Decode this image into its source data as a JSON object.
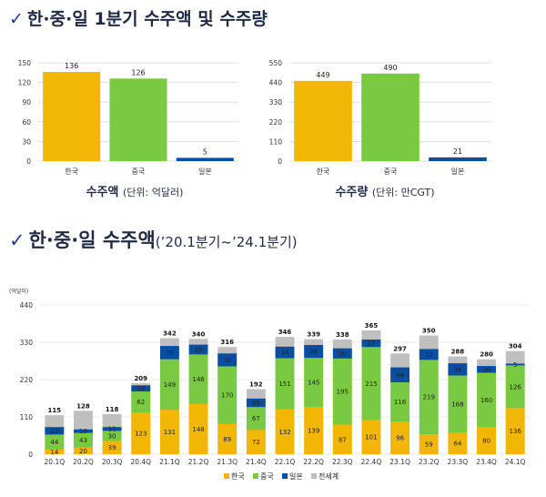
{
  "header1": {
    "check": "✓",
    "title": "한·중·일 1분기 수주액 및 수주량"
  },
  "header2": {
    "check": "✓",
    "title": "한·중·일 수주액",
    "subtitle": "(’20.1분기~’24.1분기)"
  },
  "colors": {
    "korea": "#f2b705",
    "china": "#7ac943",
    "japan": "#0a4ea2",
    "world": "#bfbfbf"
  },
  "chart_data": [
    {
      "type": "bar",
      "title": "수주액 (단위: 억달러)",
      "title_main": "수주액",
      "title_sub": "(단위: 억달러)",
      "categories": [
        "한국",
        "중국",
        "일본"
      ],
      "values": [
        136,
        126,
        5
      ],
      "ylim": [
        0,
        150
      ],
      "yticks": [
        0,
        30,
        60,
        90,
        120,
        150
      ],
      "grid": true
    },
    {
      "type": "bar",
      "title": "수주량 (단위: 만CGT)",
      "title_main": "수주량",
      "title_sub": "(단위: 만CGT)",
      "categories": [
        "한국",
        "중국",
        "일본"
      ],
      "values": [
        449,
        490,
        21
      ],
      "ylim": [
        0,
        550
      ],
      "yticks": [
        0,
        110,
        220,
        330,
        440,
        550
      ],
      "grid": true
    },
    {
      "type": "bar",
      "stacked": true,
      "unit_label": "(억달러)",
      "categories": [
        "20.1Q",
        "20.2Q",
        "20.3Q",
        "20.4Q",
        "21.1Q",
        "21.2Q",
        "21.3Q",
        "21.4Q",
        "22.1Q",
        "22.2Q",
        "22.3Q",
        "22.4Q",
        "23.1Q",
        "23.2Q",
        "23.3Q",
        "23.4Q",
        "24.1Q"
      ],
      "series": [
        {
          "name": "한국",
          "values": [
            14,
            20,
            39,
            123,
            131,
            148,
            89,
            72,
            132,
            139,
            87,
            101,
            96,
            59,
            64,
            80,
            136
          ]
        },
        {
          "name": "중국",
          "values": [
            44,
            43,
            30,
            62,
            149,
            146,
            170,
            67,
            151,
            145,
            195,
            215,
            116,
            219,
            168,
            160,
            126
          ]
        },
        {
          "name": "일본",
          "values": [
            22,
            10,
            11,
            18,
            39,
            29,
            38,
            25,
            34,
            38,
            30,
            22,
            44,
            32,
            36,
            20,
            5
          ]
        }
      ],
      "totals": {
        "name": "전세계",
        "values": [
          115,
          128,
          118,
          209,
          342,
          340,
          316,
          192,
          346,
          339,
          338,
          365,
          297,
          350,
          288,
          280,
          304
        ]
      },
      "ylim": [
        0,
        440
      ],
      "yticks": [
        0,
        110,
        220,
        330,
        440
      ],
      "grid": true,
      "legend": "bottom"
    }
  ]
}
